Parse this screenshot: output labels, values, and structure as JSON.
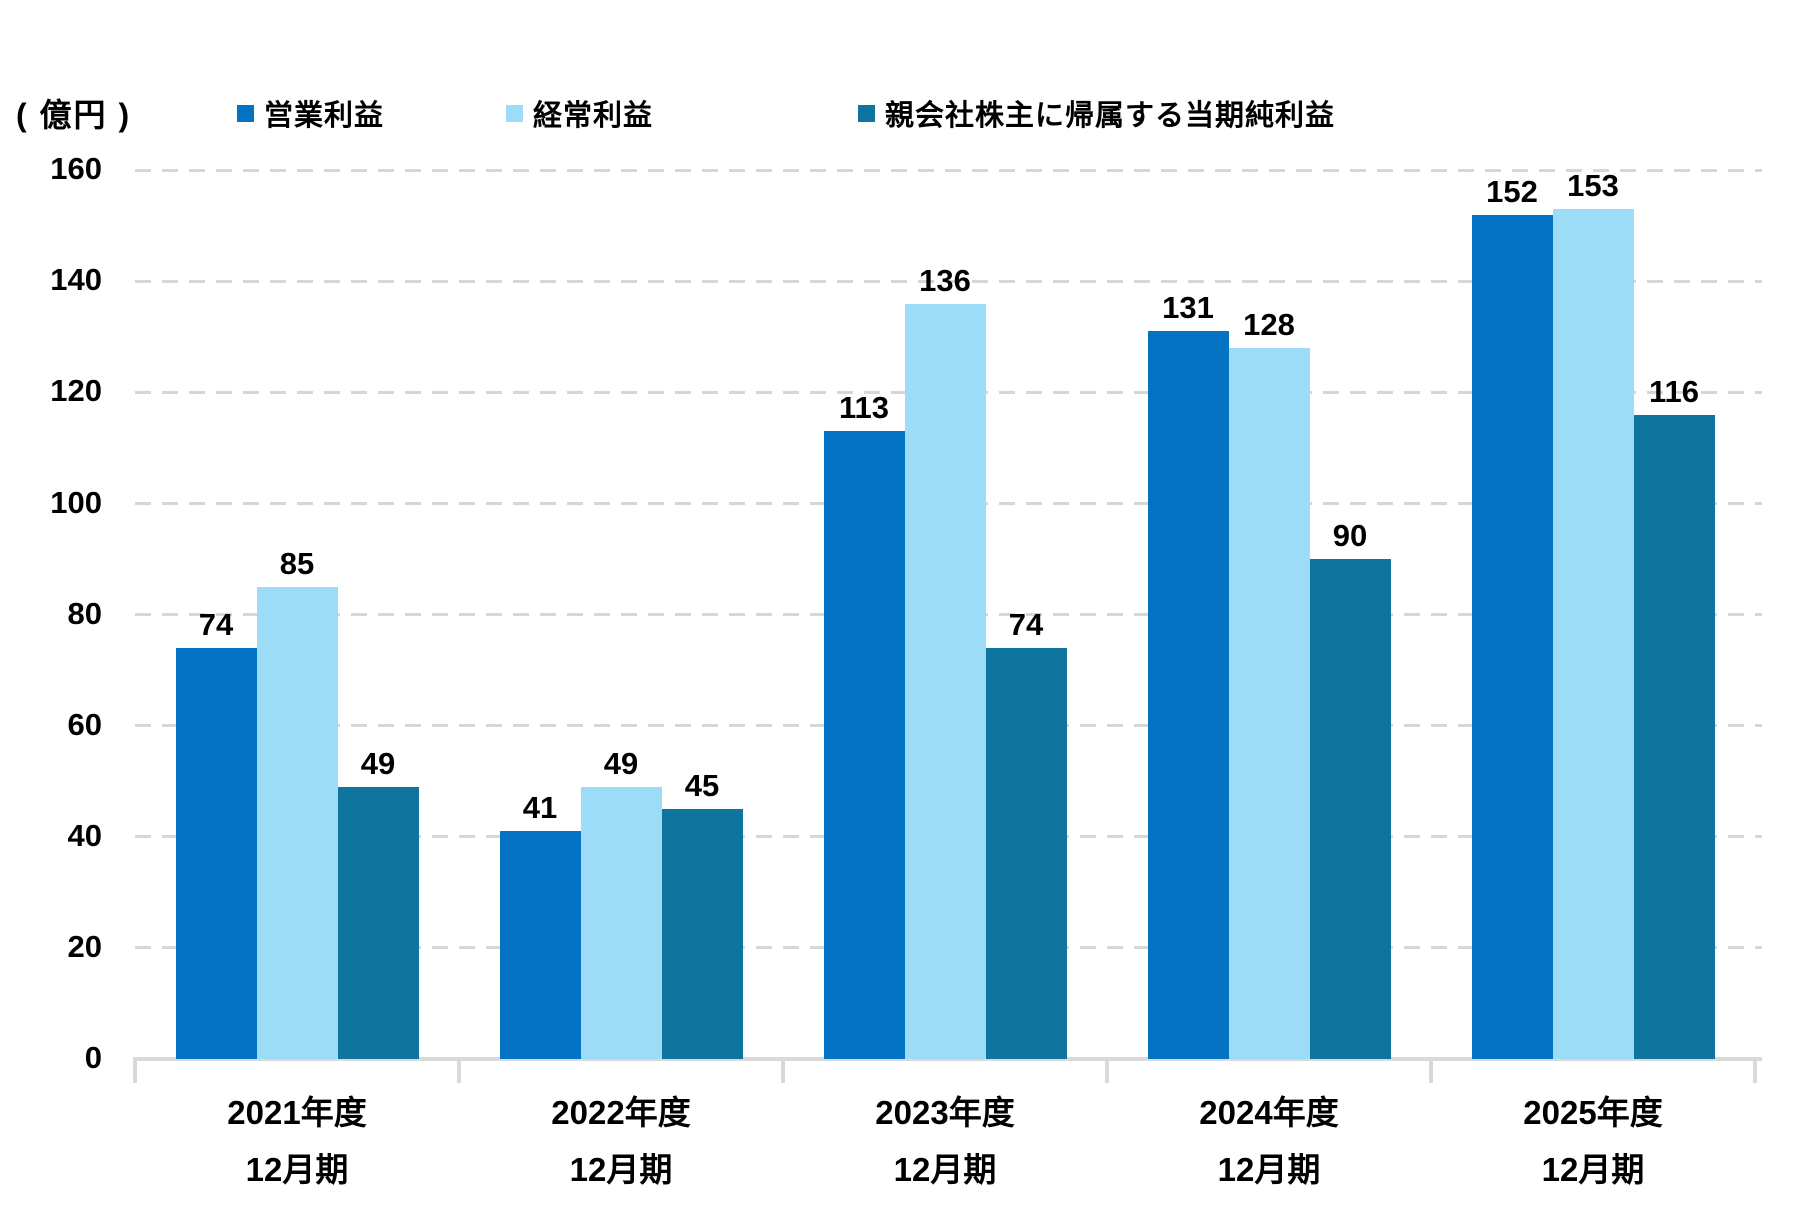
{
  "unit_label": "( 億円 )",
  "legend": [
    {
      "label": "営業利益",
      "color": "#0473C4"
    },
    {
      "label": "経常利益",
      "color": "#9CDCF6"
    },
    {
      "label": "親会社株主に帰属する当期純利益",
      "color": "#10759E"
    }
  ],
  "chart_data": {
    "type": "bar",
    "title": "",
    "unit": "億円",
    "categories": [
      {
        "line1": "2021年度",
        "line2": "12月期"
      },
      {
        "line1": "2022年度",
        "line2": "12月期"
      },
      {
        "line1": "2023年度",
        "line2": "12月期"
      },
      {
        "line1": "2024年度",
        "line2": "12月期"
      },
      {
        "line1": "2025年度",
        "line2": "12月期"
      }
    ],
    "series": [
      {
        "name": "営業利益",
        "color": "#0473C4",
        "values": [
          74,
          41,
          113,
          131,
          152
        ]
      },
      {
        "name": "経常利益",
        "color": "#9CDCF6",
        "values": [
          85,
          49,
          136,
          128,
          153
        ]
      },
      {
        "name": "親会社株主に帰属する当期純利益",
        "color": "#10759E",
        "values": [
          49,
          45,
          74,
          90,
          116
        ]
      }
    ],
    "ylim": [
      0,
      160
    ],
    "ytick_step": 20,
    "yticks": [
      0,
      20,
      40,
      60,
      80,
      100,
      120,
      140,
      160
    ],
    "grid": "horizontal-dashed",
    "legend_position": "top",
    "data_labels": true,
    "colors": {
      "grid": "#D6D6D6",
      "axis": "#D9D9D9",
      "text": "#000000"
    }
  }
}
